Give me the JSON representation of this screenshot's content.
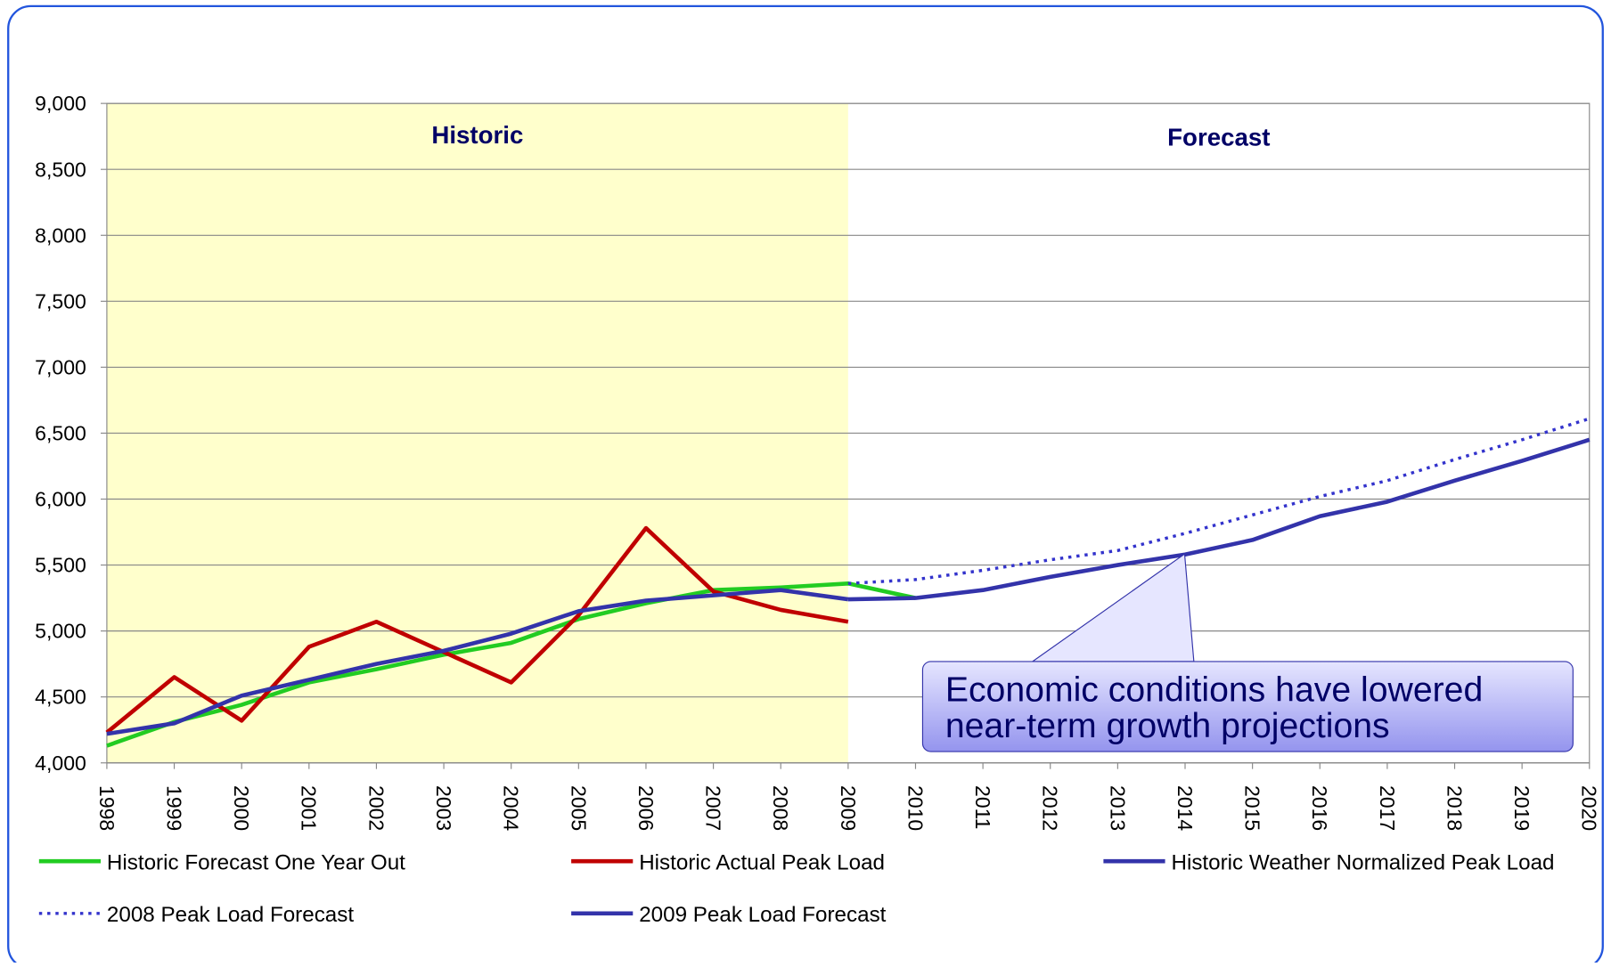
{
  "chart_data": {
    "type": "line",
    "categories": [
      "1998",
      "1999",
      "2000",
      "2001",
      "2002",
      "2003",
      "2004",
      "2005",
      "2006",
      "2007",
      "2008",
      "2009",
      "2010",
      "2011",
      "2012",
      "2013",
      "2014",
      "2015",
      "2016",
      "2017",
      "2018",
      "2019",
      "2020"
    ],
    "series": [
      {
        "name": "Historic Forecast One Year Out",
        "color": "#22cc22",
        "dotted": false,
        "values": [
          4130,
          4310,
          4440,
          4610,
          4710,
          4820,
          4910,
          5090,
          5210,
          5310,
          5330,
          5360,
          5250,
          null,
          null,
          null,
          null,
          null,
          null,
          null,
          null,
          null,
          null
        ]
      },
      {
        "name": "Historic Actual Peak Load",
        "color": "#c00000",
        "dotted": false,
        "values": [
          4230,
          4650,
          4320,
          4880,
          5070,
          4840,
          4610,
          5120,
          5780,
          5300,
          5160,
          5070,
          null,
          null,
          null,
          null,
          null,
          null,
          null,
          null,
          null,
          null,
          null
        ]
      },
      {
        "name": "Historic Weather Normalized Peak Load",
        "color": "#3333aa",
        "dotted": false,
        "values": [
          4220,
          4300,
          4510,
          4630,
          4750,
          4850,
          4980,
          5150,
          5230,
          5270,
          5310,
          5240,
          null,
          null,
          null,
          null,
          null,
          null,
          null,
          null,
          null,
          null,
          null
        ]
      },
      {
        "name": "2008 Peak Load Forecast",
        "color": "#3333cc",
        "dotted": true,
        "values": [
          null,
          null,
          null,
          null,
          null,
          null,
          null,
          null,
          null,
          null,
          null,
          5360,
          5390,
          5460,
          5540,
          5610,
          5740,
          5880,
          6020,
          6140,
          6300,
          6450,
          6610
        ]
      },
      {
        "name": "2009 Peak Load Forecast",
        "color": "#3333aa",
        "dotted": false,
        "values": [
          null,
          null,
          null,
          null,
          null,
          null,
          null,
          null,
          null,
          null,
          null,
          5240,
          5250,
          5310,
          5410,
          5500,
          5580,
          5690,
          5870,
          5980,
          6140,
          6290,
          6450
        ]
      }
    ],
    "ylim": [
      4000,
      9000
    ],
    "yticks": [
      {
        "value": 4000,
        "label": "4,000"
      },
      {
        "value": 4500,
        "label": "4,500"
      },
      {
        "value": 5000,
        "label": "5,000"
      },
      {
        "value": 5500,
        "label": "5,500"
      },
      {
        "value": 6000,
        "label": "6,000"
      },
      {
        "value": 6500,
        "label": "6,500"
      },
      {
        "value": 7000,
        "label": "7,000"
      },
      {
        "value": 7500,
        "label": "7,500"
      },
      {
        "value": 8000,
        "label": "8,000"
      },
      {
        "value": 8500,
        "label": "8,500"
      },
      {
        "value": 9000,
        "label": "9,000"
      }
    ],
    "grid": true,
    "region_labels": [
      "Historic",
      "Forecast"
    ],
    "callout": [
      "Economic conditions have lowered",
      "near-term growth projections"
    ]
  }
}
